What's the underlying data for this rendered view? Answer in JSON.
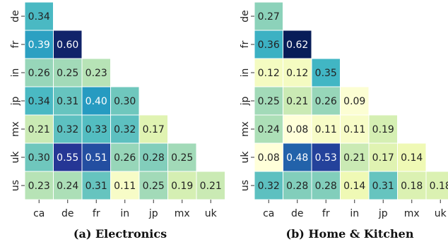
{
  "chart_data": [
    {
      "type": "heatmap",
      "title": "",
      "caption": "(a) Electronics",
      "x_labels": [
        "ca",
        "de",
        "fr",
        "in",
        "jp",
        "mx",
        "uk"
      ],
      "y_labels": [
        "de",
        "fr",
        "in",
        "jp",
        "mx",
        "uk",
        "us"
      ],
      "lower_triangle": true,
      "values": [
        [
          0.34
        ],
        [
          0.39,
          0.6
        ],
        [
          0.26,
          0.25,
          0.23
        ],
        [
          0.34,
          0.31,
          0.4,
          0.3
        ],
        [
          0.21,
          0.32,
          0.33,
          0.32,
          0.17
        ],
        [
          0.3,
          0.55,
          0.51,
          0.26,
          0.28,
          0.25
        ],
        [
          0.23,
          0.24,
          0.31,
          0.11,
          0.25,
          0.19,
          0.21
        ]
      ],
      "colormap": "YlGnBu",
      "value_range": [
        0.08,
        0.62
      ]
    },
    {
      "type": "heatmap",
      "title": "",
      "caption": "(b) Home & Kitchen",
      "x_labels": [
        "ca",
        "de",
        "fr",
        "in",
        "jp",
        "mx",
        "uk"
      ],
      "y_labels": [
        "de",
        "fr",
        "in",
        "jp",
        "mx",
        "uk",
        "us"
      ],
      "lower_triangle": true,
      "values": [
        [
          0.27
        ],
        [
          0.36,
          0.62
        ],
        [
          0.12,
          0.12,
          0.35
        ],
        [
          0.25,
          0.21,
          0.26,
          0.09
        ],
        [
          0.24,
          0.08,
          0.11,
          0.11,
          0.19
        ],
        [
          0.08,
          0.48,
          0.53,
          0.21,
          0.17,
          0.14
        ],
        [
          0.32,
          0.28,
          0.28,
          0.14,
          0.31,
          0.18,
          0.18
        ]
      ],
      "colormap": "YlGnBu",
      "value_range": [
        0.08,
        0.62
      ]
    }
  ]
}
